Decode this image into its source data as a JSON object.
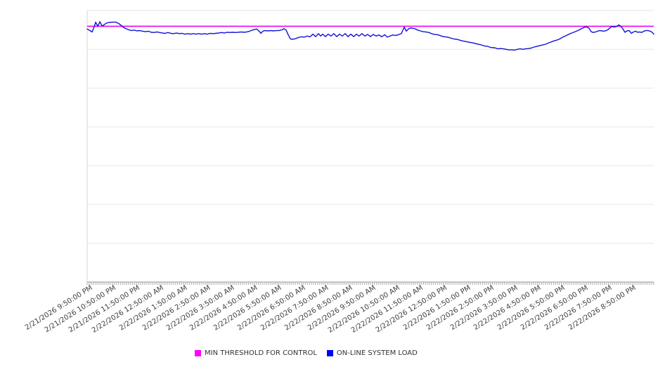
{
  "page": {
    "background": "#ffffff"
  },
  "legend": {
    "items": [
      {
        "label": "MIN THRESHOLD FOR CONTROL",
        "color": "#ff00ff"
      },
      {
        "label": "ON-LINE SYSTEM LOAD",
        "color": "#0000ff"
      }
    ]
  },
  "chart_data": {
    "type": "line",
    "title": "",
    "xlabel": "",
    "ylabel": "",
    "x_categories": [
      "2/21/2026 9:50:00 PM",
      "2/21/2026 10:50:00 PM",
      "2/21/2026 11:50:00 PM",
      "2/22/2026 12:50:00 AM",
      "2/22/2026 1:50:00 AM",
      "2/22/2026 2:50:00 AM",
      "2/22/2026 3:50:00 AM",
      "2/22/2026 4:50:00 AM",
      "2/22/2026 5:50:00 AM",
      "2/22/2026 6:50:00 AM",
      "2/22/2026 7:50:00 AM",
      "2/22/2026 8:50:00 AM",
      "2/22/2026 9:50:00 AM",
      "2/22/2026 10:50:00 AM",
      "2/22/2026 11:50:00 AM",
      "2/22/2026 12:50:00 PM",
      "2/22/2026 1:50:00 PM",
      "2/22/2026 2:50:00 PM",
      "2/22/2026 3:50:00 PM",
      "2/22/2026 4:50:00 PM",
      "2/22/2026 5:50:00 PM",
      "2/22/2026 6:50:00 PM",
      "2/22/2026 7:50:00 PM",
      "2/22/2026 8:50:00 PM"
    ],
    "x_span_hours": 24,
    "x_minor_tick_interval_minutes": 5,
    "y_axis_tick_labels_visible": false,
    "y_scale_note": "no y-axis labels rendered; values normalized to 0-100 of plot height",
    "ylim": [
      0,
      100
    ],
    "y_gridline_intervals": 7,
    "grid": "horizontal-only",
    "legend_position": "bottom",
    "series": [
      {
        "name": "MIN THRESHOLD FOR CONTROL",
        "color": "#ee00ee",
        "style": "constant-horizontal-line",
        "constant_value": 94.2
      },
      {
        "name": "ON-LINE SYSTEM LOAD",
        "color": "#1111d8",
        "style": "line",
        "points_format": "[hours_since_start, value_0_100]",
        "points": [
          [
            0,
            93.2
          ],
          [
            0.12,
            92.6
          ],
          [
            0.21,
            92.1
          ],
          [
            0.3,
            94.1
          ],
          [
            0.36,
            95.7
          ],
          [
            0.45,
            94.2
          ],
          [
            0.54,
            95.9
          ],
          [
            0.63,
            94.3
          ],
          [
            0.71,
            94.7
          ],
          [
            0.8,
            95.3
          ],
          [
            0.92,
            95.6
          ],
          [
            1.07,
            95.7
          ],
          [
            1.22,
            95.7
          ],
          [
            1.34,
            95.2
          ],
          [
            1.43,
            94.6
          ],
          [
            1.52,
            93.9
          ],
          [
            1.64,
            93.3
          ],
          [
            1.76,
            92.9
          ],
          [
            1.88,
            92.6
          ],
          [
            1.99,
            92.8
          ],
          [
            2.11,
            92.5
          ],
          [
            2.23,
            92.6
          ],
          [
            2.35,
            92.4
          ],
          [
            2.47,
            92.2
          ],
          [
            2.59,
            92.4
          ],
          [
            2.71,
            92.0
          ],
          [
            2.83,
            91.9
          ],
          [
            2.95,
            92.1
          ],
          [
            3.07,
            91.9
          ],
          [
            3.19,
            91.7
          ],
          [
            3.31,
            91.6
          ],
          [
            3.42,
            91.9
          ],
          [
            3.54,
            91.6
          ],
          [
            3.66,
            91.5
          ],
          [
            3.78,
            91.7
          ],
          [
            3.9,
            91.5
          ],
          [
            4.02,
            91.6
          ],
          [
            4.14,
            91.3
          ],
          [
            4.26,
            91.5
          ],
          [
            4.38,
            91.3
          ],
          [
            4.5,
            91.5
          ],
          [
            4.62,
            91.3
          ],
          [
            4.73,
            91.5
          ],
          [
            4.85,
            91.3
          ],
          [
            4.97,
            91.5
          ],
          [
            5.09,
            91.3
          ],
          [
            5.21,
            91.6
          ],
          [
            5.33,
            91.5
          ],
          [
            5.45,
            91.6
          ],
          [
            5.57,
            91.7
          ],
          [
            5.69,
            91.9
          ],
          [
            5.81,
            91.7
          ],
          [
            5.93,
            92.0
          ],
          [
            6.04,
            91.9
          ],
          [
            6.16,
            92.0
          ],
          [
            6.28,
            91.9
          ],
          [
            6.4,
            92.0
          ],
          [
            6.52,
            92.1
          ],
          [
            6.64,
            92.0
          ],
          [
            6.76,
            92.1
          ],
          [
            6.88,
            92.4
          ],
          [
            7.0,
            92.8
          ],
          [
            7.09,
            93.0
          ],
          [
            7.18,
            93.2
          ],
          [
            7.27,
            92.5
          ],
          [
            7.36,
            91.6
          ],
          [
            7.44,
            92.4
          ],
          [
            7.53,
            92.6
          ],
          [
            7.65,
            92.5
          ],
          [
            7.77,
            92.6
          ],
          [
            7.89,
            92.5
          ],
          [
            8.01,
            92.6
          ],
          [
            8.13,
            92.6
          ],
          [
            8.25,
            92.9
          ],
          [
            8.34,
            93.3
          ],
          [
            8.43,
            92.8
          ],
          [
            8.52,
            91.0
          ],
          [
            8.61,
            89.5
          ],
          [
            8.72,
            89.4
          ],
          [
            8.84,
            89.7
          ],
          [
            8.96,
            90.1
          ],
          [
            9.08,
            90.3
          ],
          [
            9.2,
            90.2
          ],
          [
            9.32,
            90.6
          ],
          [
            9.44,
            90.3
          ],
          [
            9.56,
            91.3
          ],
          [
            9.68,
            90.4
          ],
          [
            9.8,
            91.5
          ],
          [
            9.89,
            90.6
          ],
          [
            9.98,
            91.3
          ],
          [
            10.09,
            90.4
          ],
          [
            10.21,
            91.3
          ],
          [
            10.33,
            90.6
          ],
          [
            10.45,
            91.5
          ],
          [
            10.57,
            90.4
          ],
          [
            10.69,
            91.3
          ],
          [
            10.81,
            90.6
          ],
          [
            10.93,
            91.5
          ],
          [
            11.05,
            90.4
          ],
          [
            11.17,
            91.3
          ],
          [
            11.29,
            90.4
          ],
          [
            11.4,
            91.3
          ],
          [
            11.52,
            90.6
          ],
          [
            11.64,
            91.5
          ],
          [
            11.76,
            90.6
          ],
          [
            11.88,
            91.2
          ],
          [
            12.0,
            90.4
          ],
          [
            12.12,
            91.2
          ],
          [
            12.24,
            90.6
          ],
          [
            12.36,
            91.0
          ],
          [
            12.48,
            90.3
          ],
          [
            12.6,
            91.1
          ],
          [
            12.71,
            90.2
          ],
          [
            12.83,
            90.6
          ],
          [
            12.95,
            91.0
          ],
          [
            13.07,
            90.8
          ],
          [
            13.19,
            91.1
          ],
          [
            13.31,
            91.5
          ],
          [
            13.43,
            93.9
          ],
          [
            13.52,
            92.4
          ],
          [
            13.61,
            93.2
          ],
          [
            13.7,
            93.6
          ],
          [
            13.82,
            93.4
          ],
          [
            13.91,
            93.2
          ],
          [
            14.0,
            92.8
          ],
          [
            14.11,
            92.5
          ],
          [
            14.23,
            92.2
          ],
          [
            14.35,
            92.1
          ],
          [
            14.47,
            91.9
          ],
          [
            14.59,
            91.5
          ],
          [
            14.71,
            91.2
          ],
          [
            14.83,
            91.1
          ],
          [
            14.95,
            90.8
          ],
          [
            15.07,
            90.4
          ],
          [
            15.19,
            90.3
          ],
          [
            15.31,
            90.1
          ],
          [
            15.42,
            89.8
          ],
          [
            15.54,
            89.5
          ],
          [
            15.66,
            89.4
          ],
          [
            15.78,
            89.1
          ],
          [
            15.9,
            88.8
          ],
          [
            16.02,
            88.6
          ],
          [
            16.14,
            88.4
          ],
          [
            16.26,
            88.2
          ],
          [
            16.38,
            88.0
          ],
          [
            16.5,
            87.7
          ],
          [
            16.62,
            87.5
          ],
          [
            16.74,
            87.2
          ],
          [
            16.85,
            86.9
          ],
          [
            16.97,
            86.8
          ],
          [
            17.09,
            86.4
          ],
          [
            17.21,
            86.3
          ],
          [
            17.3,
            86.2
          ],
          [
            17.39,
            85.9
          ],
          [
            17.51,
            86.0
          ],
          [
            17.63,
            85.9
          ],
          [
            17.75,
            85.7
          ],
          [
            17.87,
            85.5
          ],
          [
            17.99,
            85.5
          ],
          [
            18.1,
            85.4
          ],
          [
            18.22,
            85.7
          ],
          [
            18.34,
            85.9
          ],
          [
            18.46,
            85.7
          ],
          [
            18.58,
            85.9
          ],
          [
            18.7,
            86.0
          ],
          [
            18.82,
            86.2
          ],
          [
            18.94,
            86.6
          ],
          [
            19.06,
            86.8
          ],
          [
            19.18,
            87.1
          ],
          [
            19.3,
            87.3
          ],
          [
            19.42,
            87.6
          ],
          [
            19.53,
            88.0
          ],
          [
            19.65,
            88.4
          ],
          [
            19.77,
            88.8
          ],
          [
            19.89,
            89.1
          ],
          [
            20.01,
            89.5
          ],
          [
            20.13,
            90.1
          ],
          [
            20.25,
            90.6
          ],
          [
            20.37,
            91.1
          ],
          [
            20.49,
            91.6
          ],
          [
            20.61,
            92.0
          ],
          [
            20.73,
            92.4
          ],
          [
            20.85,
            92.9
          ],
          [
            20.96,
            93.4
          ],
          [
            21.08,
            93.9
          ],
          [
            21.17,
            93.9
          ],
          [
            21.26,
            93.5
          ],
          [
            21.35,
            92.2
          ],
          [
            21.44,
            91.9
          ],
          [
            21.53,
            92.1
          ],
          [
            21.62,
            92.4
          ],
          [
            21.71,
            92.6
          ],
          [
            21.8,
            92.5
          ],
          [
            21.89,
            92.4
          ],
          [
            21.98,
            92.6
          ],
          [
            22.07,
            93.0
          ],
          [
            22.15,
            93.7
          ],
          [
            22.24,
            94.1
          ],
          [
            22.33,
            93.9
          ],
          [
            22.42,
            94.1
          ],
          [
            22.51,
            94.7
          ],
          [
            22.6,
            94.2
          ],
          [
            22.69,
            93.3
          ],
          [
            22.78,
            92.0
          ],
          [
            22.87,
            92.5
          ],
          [
            22.96,
            92.6
          ],
          [
            23.05,
            91.6
          ],
          [
            23.14,
            92.1
          ],
          [
            23.23,
            92.4
          ],
          [
            23.31,
            92.0
          ],
          [
            23.4,
            92.1
          ],
          [
            23.49,
            91.9
          ],
          [
            23.58,
            92.4
          ],
          [
            23.67,
            92.6
          ],
          [
            23.76,
            92.6
          ],
          [
            23.85,
            92.4
          ],
          [
            23.94,
            91.9
          ],
          [
            24.0,
            91.3
          ]
        ]
      }
    ]
  }
}
